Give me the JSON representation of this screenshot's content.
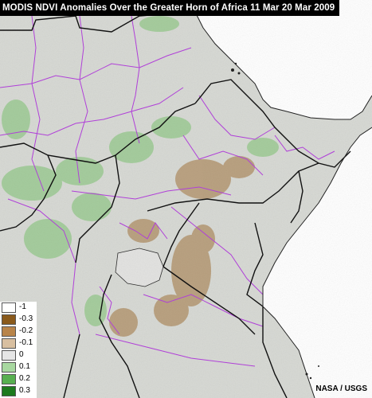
{
  "title": "MODIS NDVI Anomalies Over the Greater Horn of Africa  11 Mar 20 Mar 2009",
  "credit": "NASA / USGS",
  "legend": [
    {
      "label": "-1",
      "color": "#ffffff"
    },
    {
      "label": "-0.3",
      "color": "#8a5a1c"
    },
    {
      "label": "-0.2",
      "color": "#b8844a"
    },
    {
      "label": "-0.1",
      "color": "#d8bfa0"
    },
    {
      "label": "0",
      "color": "#e6e6e6"
    },
    {
      "label": "0.1",
      "color": "#a8d8a0"
    },
    {
      "label": "0.2",
      "color": "#58b050"
    },
    {
      "label": "0.3",
      "color": "#1e7a1e"
    }
  ],
  "colors": {
    "land": "#d6d8d3",
    "sea": "#ffffff",
    "admin_boundary": "#b040d8",
    "country_boundary": "#111111"
  }
}
